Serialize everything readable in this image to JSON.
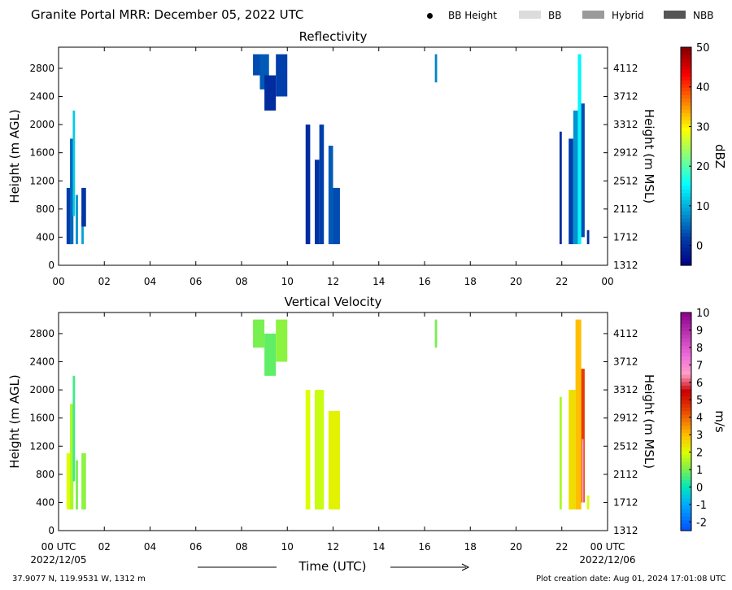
{
  "header": {
    "title": "Granite Portal MRR:  December 05, 2022 UTC",
    "legend": [
      {
        "label": "BB Height",
        "marker": "dot",
        "color": "#000000"
      },
      {
        "label": "BB",
        "marker": "box",
        "color": "#dcdcdc"
      },
      {
        "label": "Hybrid",
        "marker": "box",
        "color": "#9a9a9a"
      },
      {
        "label": "NBB",
        "marker": "box",
        "color": "#555555"
      }
    ]
  },
  "footer": {
    "location": "37.9077 N, 119.9531 W, 1312 m",
    "creation": "Plot creation date: Aug 01, 2024 17:01:08 UTC",
    "time_label": "Time (UTC)",
    "start_date": "2022/12/05",
    "end_date": "2022/12/06"
  },
  "chart_data": [
    {
      "type": "heatmap",
      "title": "Reflectivity",
      "xlabel": "",
      "ylabel": "Height (m AGL)",
      "ylabel_right": "Height (m MSL)",
      "colorbar_label": "dBZ",
      "colorbar_range": [
        -5,
        50
      ],
      "colorbar_ticks": [
        "0",
        "10",
        "20",
        "30",
        "40",
        "50"
      ],
      "x_range_hours": [
        0,
        24
      ],
      "x_ticks": [
        "00",
        "02",
        "04",
        "06",
        "08",
        "10",
        "12",
        "14",
        "16",
        "18",
        "20",
        "22",
        "00"
      ],
      "y_range": [
        0,
        3100
      ],
      "y_ticks": [
        "0",
        "400",
        "800",
        "1200",
        "1600",
        "2000",
        "2400",
        "2800"
      ],
      "y_ticks_right": [
        "1312",
        "1712",
        "2112",
        "2512",
        "2912",
        "3312",
        "3712",
        "4112"
      ],
      "cells": [
        {
          "t0": 0.35,
          "t1": 0.55,
          "h0": 300,
          "h1": 1100,
          "v": 2
        },
        {
          "t0": 0.5,
          "t1": 0.65,
          "h0": 300,
          "h1": 1800,
          "v": 5
        },
        {
          "t0": 0.62,
          "t1": 0.72,
          "h0": 700,
          "h1": 2200,
          "v": 12
        },
        {
          "t0": 0.75,
          "t1": 0.85,
          "h0": 300,
          "h1": 1000,
          "v": 8
        },
        {
          "t0": 1.0,
          "t1": 1.1,
          "h0": 300,
          "h1": 700,
          "v": 9
        },
        {
          "t0": 1.0,
          "t1": 1.2,
          "h0": 550,
          "h1": 1100,
          "v": 1
        },
        {
          "t0": 8.5,
          "t1": 8.8,
          "h0": 2700,
          "h1": 3000,
          "v": 3
        },
        {
          "t0": 8.8,
          "t1": 9.2,
          "h0": 2500,
          "h1": 3000,
          "v": 4
        },
        {
          "t0": 9.0,
          "t1": 9.5,
          "h0": 2200,
          "h1": 2700,
          "v": 0
        },
        {
          "t0": 9.5,
          "t1": 10.0,
          "h0": 2400,
          "h1": 3000,
          "v": 2
        },
        {
          "t0": 10.8,
          "t1": 11.0,
          "h0": 300,
          "h1": 2000,
          "v": 0
        },
        {
          "t0": 11.2,
          "t1": 11.4,
          "h0": 300,
          "h1": 1500,
          "v": 1
        },
        {
          "t0": 11.4,
          "t1": 11.6,
          "h0": 300,
          "h1": 2000,
          "v": 2
        },
        {
          "t0": 11.8,
          "t1": 12.0,
          "h0": 300,
          "h1": 1700,
          "v": 4
        },
        {
          "t0": 12.0,
          "t1": 12.3,
          "h0": 300,
          "h1": 1100,
          "v": 3
        },
        {
          "t0": 16.45,
          "t1": 16.55,
          "h0": 2600,
          "h1": 3000,
          "v": 7
        },
        {
          "t0": 21.9,
          "t1": 22.0,
          "h0": 300,
          "h1": 1900,
          "v": 0
        },
        {
          "t0": 22.3,
          "t1": 22.5,
          "h0": 300,
          "h1": 1800,
          "v": 2
        },
        {
          "t0": 22.5,
          "t1": 22.7,
          "h0": 300,
          "h1": 2200,
          "v": 8
        },
        {
          "t0": 22.7,
          "t1": 22.85,
          "h0": 300,
          "h1": 3000,
          "v": 15
        },
        {
          "t0": 22.85,
          "t1": 23.0,
          "h0": 400,
          "h1": 2300,
          "v": 3
        },
        {
          "t0": 23.1,
          "t1": 23.2,
          "h0": 300,
          "h1": 500,
          "v": 0
        }
      ]
    },
    {
      "type": "heatmap",
      "title": "Vertical Velocity",
      "xlabel": "Time (UTC)",
      "ylabel": "Height (m AGL)",
      "ylabel_right": "Height (m MSL)",
      "colorbar_label": "m/s",
      "colorbar_range": [
        -2.5,
        10
      ],
      "colorbar_ticks": [
        "-2",
        "-1",
        "0",
        "1",
        "2",
        "3",
        "4",
        "5",
        "6",
        "7",
        "8",
        "9",
        "10"
      ],
      "x_range_hours": [
        0,
        24
      ],
      "x_ticks": [
        "00 UTC",
        "02",
        "04",
        "06",
        "08",
        "10",
        "12",
        "14",
        "16",
        "18",
        "20",
        "22",
        "00 UTC"
      ],
      "y_range": [
        0,
        3100
      ],
      "y_ticks": [
        "0",
        "400",
        "800",
        "1200",
        "1600",
        "2000",
        "2400",
        "2800"
      ],
      "y_ticks_right": [
        "1312",
        "1712",
        "2112",
        "2512",
        "2912",
        "3312",
        "3712",
        "4112"
      ],
      "cells": [
        {
          "t0": 0.35,
          "t1": 0.55,
          "h0": 300,
          "h1": 1100,
          "v": 2
        },
        {
          "t0": 0.5,
          "t1": 0.65,
          "h0": 300,
          "h1": 1800,
          "v": 1.5
        },
        {
          "t0": 0.62,
          "t1": 0.72,
          "h0": 700,
          "h1": 2200,
          "v": 0.5
        },
        {
          "t0": 0.75,
          "t1": 0.85,
          "h0": 300,
          "h1": 1000,
          "v": 1
        },
        {
          "t0": 1.0,
          "t1": 1.2,
          "h0": 300,
          "h1": 1100,
          "v": 1.2
        },
        {
          "t0": 8.5,
          "t1": 9.0,
          "h0": 2600,
          "h1": 3000,
          "v": 1
        },
        {
          "t0": 9.0,
          "t1": 9.5,
          "h0": 2200,
          "h1": 2800,
          "v": 0.8
        },
        {
          "t0": 9.5,
          "t1": 10.0,
          "h0": 2400,
          "h1": 3000,
          "v": 1.2
        },
        {
          "t0": 10.8,
          "t1": 11.0,
          "h0": 300,
          "h1": 2000,
          "v": 2
        },
        {
          "t0": 11.2,
          "t1": 11.6,
          "h0": 300,
          "h1": 2000,
          "v": 1.8
        },
        {
          "t0": 11.8,
          "t1": 12.3,
          "h0": 300,
          "h1": 1700,
          "v": 2.2
        },
        {
          "t0": 16.45,
          "t1": 16.55,
          "h0": 2600,
          "h1": 3000,
          "v": 1
        },
        {
          "t0": 21.9,
          "t1": 22.0,
          "h0": 300,
          "h1": 1900,
          "v": 1.5
        },
        {
          "t0": 22.3,
          "t1": 22.6,
          "h0": 300,
          "h1": 2000,
          "v": 2.5
        },
        {
          "t0": 22.6,
          "t1": 22.85,
          "h0": 300,
          "h1": 3000,
          "v": 3
        },
        {
          "t0": 22.85,
          "t1": 23.0,
          "h0": 400,
          "h1": 2300,
          "v": 4.5
        },
        {
          "t0": 22.88,
          "t1": 22.95,
          "h0": 400,
          "h1": 1300,
          "v": 6.5
        },
        {
          "t0": 23.1,
          "t1": 23.2,
          "h0": 300,
          "h1": 500,
          "v": 2
        }
      ]
    }
  ]
}
